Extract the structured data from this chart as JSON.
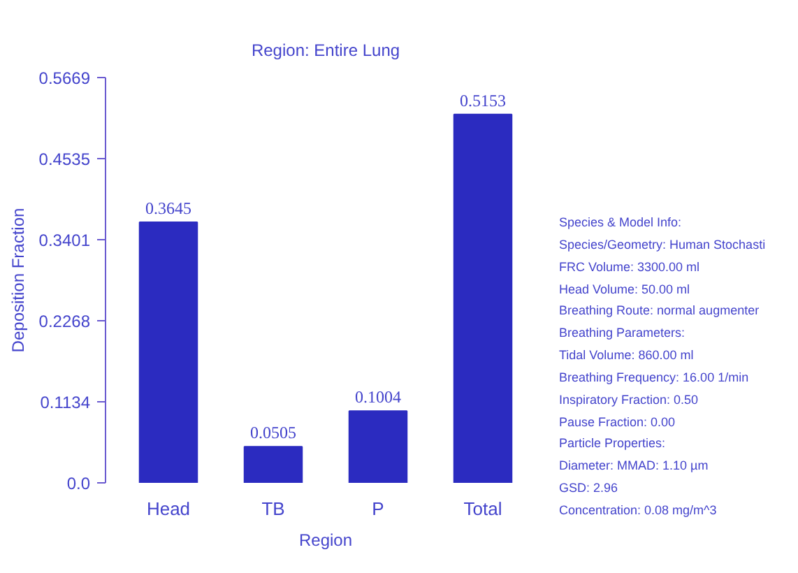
{
  "chart_data": {
    "type": "bar",
    "title": "Region: Entire Lung",
    "xlabel": "Region",
    "ylabel": "Deposition Fraction",
    "categories": [
      "Head",
      "TB",
      "P",
      "Total"
    ],
    "values": [
      0.3645,
      0.0505,
      0.1004,
      0.5153
    ],
    "color": "#2b2bc0",
    "data_labels": true,
    "ylim": [
      0,
      0.5669
    ],
    "yticks": [
      {
        "value": 0,
        "label": "0.0"
      },
      0.1134,
      0.2268,
      0.3401,
      0.4535,
      0.5669
    ],
    "grid": false,
    "annotations": [
      "Species & Model Info:",
      "Species/Geometry: Human Stochasti",
      "FRC Volume: 3300.00 ml",
      "Head Volume: 50.00 ml",
      "Breathing Route: normal augmenter",
      "Breathing Parameters:",
      "Tidal Volume: 860.00 ml",
      "Breathing Frequency: 16.00 1/min",
      "Inspiratory Fraction: 0.50",
      "Pause Fraction: 0.00",
      "Particle Properties:",
      "Diameter: MMAD: 1.10 µm",
      "GSD: 2.96",
      "Concentration: 0.08 mg/m^3"
    ]
  }
}
